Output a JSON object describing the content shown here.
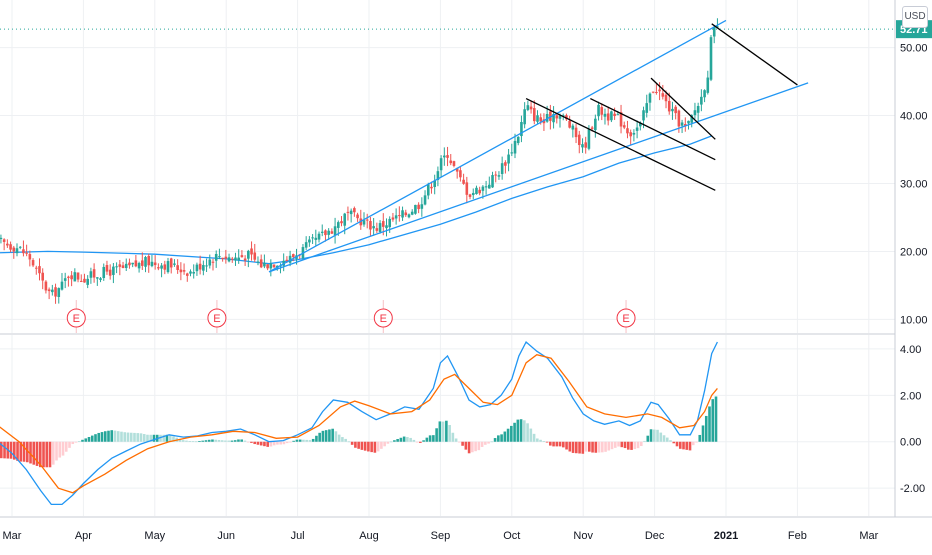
{
  "currency_button": "USD",
  "price_marker": {
    "label": "52.71",
    "value": 52.71
  },
  "x_axis": {
    "ticks": [
      {
        "label": "Mar",
        "x": 0
      },
      {
        "label": "Apr",
        "x": 1
      },
      {
        "label": "May",
        "x": 2
      },
      {
        "label": "Jun",
        "x": 3
      },
      {
        "label": "Jul",
        "x": 4
      },
      {
        "label": "Aug",
        "x": 5
      },
      {
        "label": "Sep",
        "x": 6
      },
      {
        "label": "Oct",
        "x": 7
      },
      {
        "label": "Nov",
        "x": 8
      },
      {
        "label": "Dec",
        "x": 9
      },
      {
        "label": "2021",
        "x": 10
      },
      {
        "label": "Feb",
        "x": 11
      },
      {
        "label": "Mar",
        "x": 12
      }
    ]
  },
  "chart_data": [
    {
      "type": "candlestick",
      "panel": "price",
      "x_unit": "month (0 = Mar 2020)",
      "ylim": [
        8,
        57
      ],
      "y_ticks": [
        {
          "value": 10,
          "label": "10.00"
        },
        {
          "value": 20,
          "label": "20.00"
        },
        {
          "value": 30,
          "label": "30.00"
        },
        {
          "value": 40,
          "label": "40.00"
        },
        {
          "value": 50,
          "label": "50.00"
        }
      ],
      "grid": true,
      "colors": {
        "up": "#26a69a",
        "down": "#ef5350",
        "trend": "#2196f3",
        "channel": "#000000",
        "earnings": "#f23645"
      },
      "close_path": [
        [
          -0.2,
          21.5
        ],
        [
          0.1,
          20.5
        ],
        [
          0.25,
          19.0
        ],
        [
          0.45,
          15.0
        ],
        [
          0.55,
          13.5
        ],
        [
          0.7,
          15.0
        ],
        [
          0.8,
          16.8
        ],
        [
          1.0,
          16.0
        ],
        [
          1.3,
          17.0
        ],
        [
          1.6,
          17.5
        ],
        [
          1.9,
          18.5
        ],
        [
          2.2,
          18.0
        ],
        [
          2.5,
          17.0
        ],
        [
          2.7,
          18.5
        ],
        [
          2.9,
          19.5
        ],
        [
          3.1,
          19.0
        ],
        [
          3.3,
          19.5
        ],
        [
          3.5,
          18.0
        ],
        [
          3.7,
          18.5
        ],
        [
          3.9,
          19.0
        ],
        [
          4.1,
          20.5
        ],
        [
          4.3,
          22.0
        ],
        [
          4.5,
          23.5
        ],
        [
          4.7,
          25.5
        ],
        [
          4.9,
          24.5
        ],
        [
          5.1,
          23.5
        ],
        [
          5.3,
          24.5
        ],
        [
          5.5,
          25.5
        ],
        [
          5.7,
          27.0
        ],
        [
          5.9,
          30.5
        ],
        [
          6.0,
          33.0
        ],
        [
          6.1,
          34.5
        ],
        [
          6.25,
          31.0
        ],
        [
          6.4,
          28.5
        ],
        [
          6.6,
          29.5
        ],
        [
          6.8,
          31.5
        ],
        [
          6.95,
          34.0
        ],
        [
          7.1,
          37.5
        ],
        [
          7.2,
          41.5
        ],
        [
          7.3,
          40.0
        ],
        [
          7.45,
          39.0
        ],
        [
          7.6,
          40.5
        ],
        [
          7.75,
          39.5
        ],
        [
          7.9,
          37.0
        ],
        [
          8.0,
          35.0
        ],
        [
          8.1,
          38.0
        ],
        [
          8.2,
          41.0
        ],
        [
          8.35,
          40.0
        ],
        [
          8.5,
          39.5
        ],
        [
          8.65,
          37.5
        ],
        [
          8.8,
          38.5
        ],
        [
          8.9,
          42.0
        ],
        [
          9.0,
          44.5
        ],
        [
          9.15,
          42.0
        ],
        [
          9.3,
          39.5
        ],
        [
          9.45,
          38.0
        ],
        [
          9.55,
          40.5
        ],
        [
          9.65,
          42.5
        ],
        [
          9.75,
          46.5
        ],
        [
          9.8,
          52.0
        ],
        [
          9.88,
          52.71
        ]
      ],
      "moving_average": [
        [
          -0.2,
          19.8
        ],
        [
          0.5,
          20.0
        ],
        [
          1.0,
          19.9
        ],
        [
          2.0,
          19.6
        ],
        [
          3.0,
          18.9
        ],
        [
          3.6,
          18.2
        ],
        [
          4.0,
          18.8
        ],
        [
          4.5,
          19.8
        ],
        [
          5.0,
          21.0
        ],
        [
          5.5,
          22.5
        ],
        [
          6.0,
          24.0
        ],
        [
          6.5,
          25.8
        ],
        [
          7.0,
          27.8
        ],
        [
          7.5,
          29.5
        ],
        [
          8.0,
          31.0
        ],
        [
          8.5,
          33.0
        ],
        [
          9.0,
          34.5
        ],
        [
          9.5,
          35.8
        ],
        [
          9.8,
          37.0
        ]
      ],
      "trendlines": [
        {
          "role": "channel-lower",
          "from": [
            3.6,
            17.0
          ],
          "to": [
            11.15,
            44.8
          ]
        },
        {
          "role": "channel-upper",
          "from": [
            3.6,
            17.0
          ],
          "to": [
            10.0,
            54.0
          ]
        }
      ],
      "channel_lines": [
        {
          "from": [
            7.2,
            42.5
          ],
          "to": [
            9.85,
            29.0
          ]
        },
        {
          "from": [
            8.1,
            42.5
          ],
          "to": [
            9.85,
            33.5
          ]
        },
        {
          "from": [
            8.95,
            45.5
          ],
          "to": [
            9.85,
            36.5
          ]
        },
        {
          "from": [
            9.8,
            53.5
          ],
          "to": [
            11.0,
            44.5
          ]
        }
      ],
      "earnings_markers": [
        {
          "label": "E",
          "x": 0.9
        },
        {
          "label": "E",
          "x": 2.87
        },
        {
          "label": "E",
          "x": 5.2
        },
        {
          "label": "E",
          "x": 8.6
        }
      ]
    },
    {
      "type": "macd",
      "panel": "indicator",
      "x_unit": "month (0 = Mar 2020)",
      "ylim": [
        -3.2,
        4.6
      ],
      "y_ticks": [
        {
          "value": -2,
          "label": "-2.00"
        },
        {
          "value": 0,
          "label": "0.00"
        },
        {
          "value": 2,
          "label": "2.00"
        },
        {
          "value": 4,
          "label": "4.00"
        }
      ],
      "grid": true,
      "colors": {
        "macd": "#2196f3",
        "signal": "#ff6d00",
        "hist_up_strong": "#26a69a",
        "hist_up_weak": "#b2dfdb",
        "hist_down_strong": "#ef5350",
        "hist_down_weak": "#ffcdd2"
      },
      "series": [
        {
          "role": "macd",
          "points": [
            [
              -0.2,
              0.0
            ],
            [
              0.0,
              -0.5
            ],
            [
              0.2,
              -1.2
            ],
            [
              0.4,
              -2.1
            ],
            [
              0.55,
              -2.7
            ],
            [
              0.7,
              -2.7
            ],
            [
              0.85,
              -2.3
            ],
            [
              1.0,
              -1.8
            ],
            [
              1.2,
              -1.2
            ],
            [
              1.4,
              -0.7
            ],
            [
              1.6,
              -0.4
            ],
            [
              1.8,
              -0.1
            ],
            [
              2.0,
              0.1
            ],
            [
              2.2,
              0.3
            ],
            [
              2.4,
              0.2
            ],
            [
              2.6,
              0.25
            ],
            [
              2.8,
              0.4
            ],
            [
              3.0,
              0.45
            ],
            [
              3.2,
              0.55
            ],
            [
              3.4,
              0.3
            ],
            [
              3.6,
              0.0
            ],
            [
              3.8,
              0.05
            ],
            [
              4.0,
              0.3
            ],
            [
              4.2,
              0.6
            ],
            [
              4.35,
              1.3
            ],
            [
              4.5,
              1.8
            ],
            [
              4.7,
              1.7
            ],
            [
              4.9,
              1.3
            ],
            [
              5.1,
              0.95
            ],
            [
              5.3,
              1.2
            ],
            [
              5.5,
              1.5
            ],
            [
              5.7,
              1.4
            ],
            [
              5.9,
              2.3
            ],
            [
              6.0,
              3.4
            ],
            [
              6.1,
              3.7
            ],
            [
              6.25,
              2.8
            ],
            [
              6.4,
              1.8
            ],
            [
              6.55,
              1.5
            ],
            [
              6.7,
              1.6
            ],
            [
              6.85,
              2.0
            ],
            [
              7.0,
              2.7
            ],
            [
              7.1,
              3.7
            ],
            [
              7.2,
              4.3
            ],
            [
              7.35,
              3.9
            ],
            [
              7.5,
              3.6
            ],
            [
              7.7,
              2.8
            ],
            [
              7.85,
              1.9
            ],
            [
              8.0,
              1.2
            ],
            [
              8.15,
              0.9
            ],
            [
              8.3,
              0.75
            ],
            [
              8.5,
              0.9
            ],
            [
              8.65,
              0.7
            ],
            [
              8.8,
              0.9
            ],
            [
              8.95,
              1.7
            ],
            [
              9.05,
              1.6
            ],
            [
              9.2,
              1.0
            ],
            [
              9.35,
              0.3
            ],
            [
              9.5,
              0.3
            ],
            [
              9.6,
              0.9
            ],
            [
              9.7,
              2.2
            ],
            [
              9.8,
              3.8
            ],
            [
              9.88,
              4.3
            ]
          ]
        },
        {
          "role": "signal",
          "points": [
            [
              -0.2,
              0.7
            ],
            [
              0.1,
              0.0
            ],
            [
              0.4,
              -1.0
            ],
            [
              0.65,
              -2.0
            ],
            [
              0.85,
              -2.2
            ],
            [
              1.0,
              -1.9
            ],
            [
              1.3,
              -1.4
            ],
            [
              1.6,
              -0.8
            ],
            [
              1.9,
              -0.3
            ],
            [
              2.2,
              0.0
            ],
            [
              2.5,
              0.2
            ],
            [
              2.8,
              0.3
            ],
            [
              3.1,
              0.45
            ],
            [
              3.4,
              0.4
            ],
            [
              3.7,
              0.15
            ],
            [
              4.0,
              0.2
            ],
            [
              4.3,
              0.7
            ],
            [
              4.6,
              1.5
            ],
            [
              4.8,
              1.75
            ],
            [
              5.0,
              1.55
            ],
            [
              5.3,
              1.2
            ],
            [
              5.6,
              1.3
            ],
            [
              5.85,
              1.8
            ],
            [
              6.05,
              2.7
            ],
            [
              6.2,
              2.9
            ],
            [
              6.4,
              2.3
            ],
            [
              6.6,
              1.7
            ],
            [
              6.8,
              1.6
            ],
            [
              7.0,
              2.0
            ],
            [
              7.2,
              3.4
            ],
            [
              7.35,
              3.75
            ],
            [
              7.55,
              3.6
            ],
            [
              7.8,
              2.6
            ],
            [
              8.05,
              1.5
            ],
            [
              8.3,
              1.2
            ],
            [
              8.6,
              1.05
            ],
            [
              8.9,
              1.2
            ],
            [
              9.1,
              1.05
            ],
            [
              9.35,
              0.6
            ],
            [
              9.55,
              0.7
            ],
            [
              9.7,
              1.3
            ],
            [
              9.8,
              2.0
            ],
            [
              9.88,
              2.3
            ]
          ]
        }
      ]
    }
  ]
}
